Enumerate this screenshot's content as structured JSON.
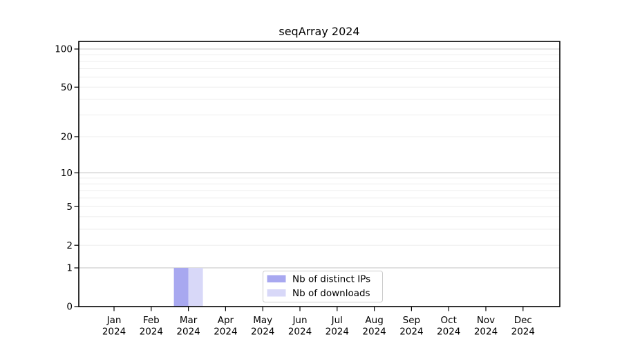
{
  "chart_data": {
    "type": "bar",
    "title": "seqArray 2024",
    "categories": [
      "Jan 2024",
      "Feb 2024",
      "Mar 2024",
      "Apr 2024",
      "May 2024",
      "Jun 2024",
      "Jul 2024",
      "Aug 2024",
      "Sep 2024",
      "Oct 2024",
      "Nov 2024",
      "Dec 2024"
    ],
    "series": [
      {
        "name": "Nb of distinct IPs",
        "color": "#a8a8f0",
        "values": [
          0,
          0,
          1,
          0,
          0,
          0,
          0,
          0,
          0,
          0,
          0,
          0
        ]
      },
      {
        "name": "Nb of downloads",
        "color": "#d8d8f8",
        "values": [
          0,
          0,
          1,
          0,
          0,
          0,
          0,
          0,
          0,
          0,
          0,
          0
        ]
      }
    ],
    "xlabel": "",
    "ylabel": "",
    "yscale": "log1p",
    "ylim": [
      0,
      115
    ],
    "yticks": [
      0,
      1,
      2,
      5,
      10,
      20,
      50,
      100
    ],
    "grid_major": [
      1,
      10,
      100
    ],
    "grid_minor": [
      2,
      3,
      4,
      5,
      6,
      7,
      8,
      9,
      20,
      30,
      40,
      50,
      60,
      70,
      80,
      90
    ],
    "grid": "horizontal",
    "legend_position": "inside-bottom-center"
  },
  "colors": {
    "grid_major": "#c9c9c9",
    "grid_minor": "#ededed",
    "axis": "#000000",
    "legend_border": "#cccccc",
    "background": "#ffffff"
  }
}
